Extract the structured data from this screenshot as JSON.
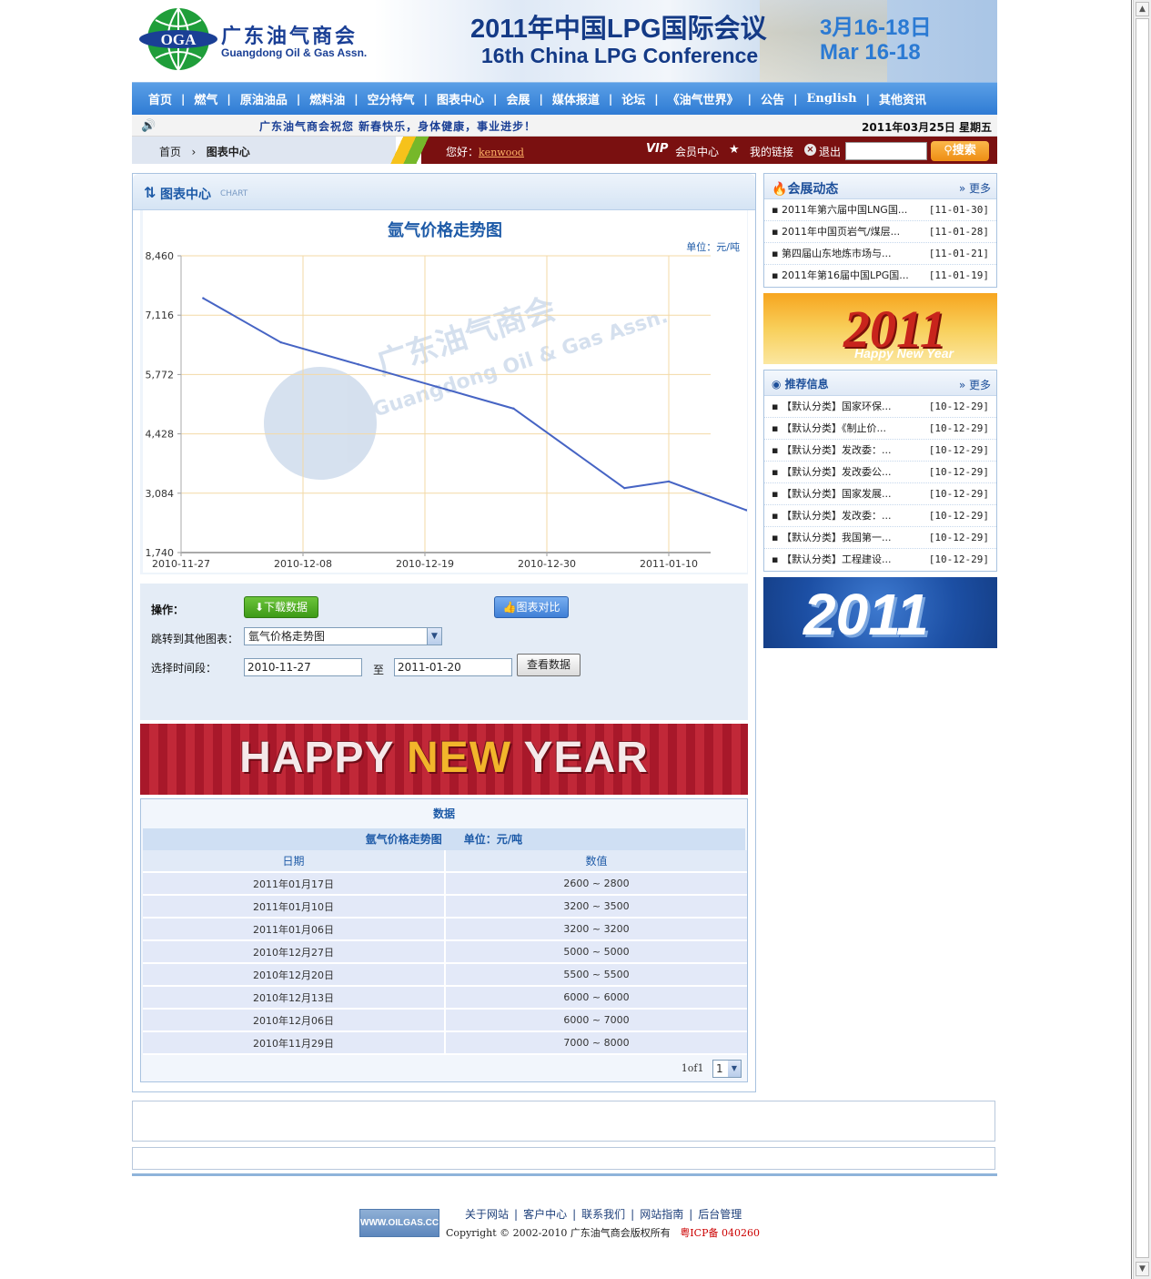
{
  "header": {
    "logo_cn": "广东油气商会",
    "logo_en": "Guangdong Oil & Gas Assn.",
    "logo_mark": "OGA",
    "conf_title_cn": "2011年中国LPG国际会议",
    "conf_title_en": "16th China LPG Conference",
    "conf_date_cn": "3月16-18日",
    "conf_date_en": "Mar  16-18"
  },
  "nav": {
    "items": [
      "首页",
      "燃气",
      "原油油品",
      "燃料油",
      "空分特气",
      "图表中心",
      "会展",
      "媒体报道",
      "论坛",
      "《油气世界》",
      "公告",
      "English",
      "其他资讯"
    ]
  },
  "msgbar": {
    "message": "广东油气商会祝您 新春快乐，身体健康，事业进步！",
    "today": "2011年03月25日 星期五"
  },
  "userbar": {
    "crumb_home": "首页",
    "crumb_current": "图表中心",
    "hello": "您好：",
    "username": "kenwood",
    "vip": "VIP",
    "member_center": "会员中心",
    "my_links": "我的链接",
    "logout": "退出",
    "search_label": "搜索"
  },
  "main": {
    "head_title": "图表中心",
    "head_sub": "CHART",
    "chart_title": "氩气价格走势图",
    "chart_unit": "单位：元/吨",
    "watermark_cn": "广东油气商会",
    "watermark_en": "Guangdong Oil & Gas Assn.",
    "ops_label": "操作：",
    "download_label": "下载数据",
    "compare_label": "图表对比",
    "jump_label": "跳转到其他图表：",
    "jump_value": "氩气价格走势图",
    "period_label": "选择时间段：",
    "date_from": "2010-11-27",
    "date_to_sep": "至",
    "date_to": "2011-01-20",
    "view_label": "查看数据",
    "banner_left": "HAPPY ",
    "banner_new": "NEW",
    "banner_right": " YEAR"
  },
  "data_table": {
    "caption": "数据",
    "subcaption": "氩气价格走势图　　单位：元/吨",
    "col_date": "日期",
    "col_value": "数值",
    "rows": [
      {
        "date": "2011年01月17日",
        "value": "2600 ~ 2800"
      },
      {
        "date": "2011年01月10日",
        "value": "3200 ~ 3500"
      },
      {
        "date": "2011年01月06日",
        "value": "3200 ~ 3200"
      },
      {
        "date": "2010年12月27日",
        "value": "5000 ~ 5000"
      },
      {
        "date": "2010年12月20日",
        "value": "5500 ~ 5500"
      },
      {
        "date": "2010年12月13日",
        "value": "6000 ~ 6000"
      },
      {
        "date": "2010年12月06日",
        "value": "6000 ~ 7000"
      },
      {
        "date": "2010年11月29日",
        "value": "7000 ~ 8000"
      }
    ],
    "pager_text": "1of1",
    "pager_value": "1"
  },
  "chart_data": {
    "type": "line",
    "title": "氩气价格走势图",
    "ylabel": "",
    "unit": "元/吨",
    "ylim": [
      1740,
      8460
    ],
    "yticks": [
      "8,460",
      "7,116",
      "5,772",
      "4,428",
      "3,084",
      "1,740"
    ],
    "xticks": [
      "2010-11-27",
      "2010-12-08",
      "2010-12-19",
      "2010-12-30",
      "2011-01-10"
    ],
    "x": [
      "2010-11-29",
      "2010-12-06",
      "2010-12-13",
      "2010-12-20",
      "2010-12-27",
      "2011-01-06",
      "2011-01-10",
      "2011-01-17"
    ],
    "values": [
      7500,
      6500,
      6000,
      5500,
      5000,
      3200,
      3350,
      2700
    ],
    "grid": true,
    "color": "#4664c4"
  },
  "sidebar": {
    "expo_title": "会展动态",
    "more": "更多",
    "expo_items": [
      {
        "title": "2011年第六届中国LNG国...",
        "date": "[11-01-30]"
      },
      {
        "title": "2011年中国页岩气/煤层...",
        "date": "[11-01-28]"
      },
      {
        "title": "第四届山东地炼市场与...",
        "date": "[11-01-21]"
      },
      {
        "title": "2011年第16届中国LPG国...",
        "date": "[11-01-19]"
      }
    ],
    "promo1_big": "2011",
    "promo1_small": "Happy New Year",
    "rec_title": "推荐信息",
    "rec_items": [
      {
        "title": "【默认分类】国家环保...",
        "date": "[10-12-29]"
      },
      {
        "title": "【默认分类】《制止价...",
        "date": "[10-12-29]"
      },
      {
        "title": "【默认分类】发改委：...",
        "date": "[10-12-29]"
      },
      {
        "title": "【默认分类】发改委公...",
        "date": "[10-12-29]"
      },
      {
        "title": "【默认分类】国家发展...",
        "date": "[10-12-29]"
      },
      {
        "title": "【默认分类】发改委：...",
        "date": "[10-12-29]"
      },
      {
        "title": "【默认分类】我国第一...",
        "date": "[10-12-29]"
      },
      {
        "title": "【默认分类】工程建设...",
        "date": "[10-12-29]"
      }
    ],
    "promo2_big": "2011"
  },
  "footer": {
    "logo_text": "WWW.OILGAS.CC",
    "links": [
      "关于网站",
      "客户中心",
      "联系我们",
      "网站指南",
      "后台管理"
    ],
    "copyright": "Copyright © 2002-2010  广东油气商会版权所有",
    "icp": "粤ICP备 040260"
  },
  "colors": {
    "nav_blue": "#2f7bd4",
    "user_bar": "#7a1010",
    "accent_blue": "#1d5aa7",
    "line": "#4664c4"
  }
}
